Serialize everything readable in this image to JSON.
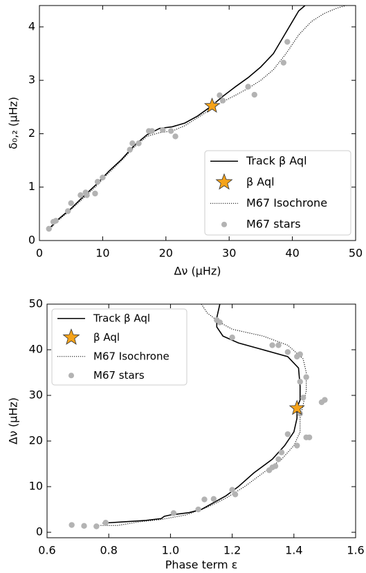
{
  "chart_data": [
    {
      "type": "line",
      "xlabel": "Δν (μHz)",
      "ylabel": "δ₀,₂ (μHz)",
      "xlim": [
        0,
        50
      ],
      "ylim": [
        0,
        4.4
      ],
      "xticks": [
        0,
        10,
        20,
        30,
        40,
        50
      ],
      "yticks": [
        0,
        1,
        2,
        3,
        4
      ],
      "legend": "lower right",
      "series": [
        {
          "name": "Track β Aql",
          "color": "#000000",
          "linestyle": "solid",
          "x": [
            1.5,
            3,
            5,
            7,
            9,
            11,
            13,
            15,
            17,
            19,
            21,
            23,
            25,
            27,
            29,
            31,
            33,
            35,
            37,
            38.5,
            40,
            41,
            42
          ],
          "values": [
            0.22,
            0.4,
            0.6,
            0.83,
            1.05,
            1.3,
            1.52,
            1.78,
            1.98,
            2.1,
            2.13,
            2.2,
            2.33,
            2.5,
            2.7,
            2.88,
            3.05,
            3.25,
            3.5,
            3.8,
            4.1,
            4.3,
            4.4
          ]
        },
        {
          "name": "β Aql",
          "color": "#f5a31a",
          "marker": "star",
          "x": [
            27.3
          ],
          "values": [
            2.52
          ]
        },
        {
          "name": "M67 Isochrone",
          "color": "#000000",
          "linestyle": "dotted",
          "x": [
            1.5,
            3,
            5,
            7,
            9,
            11,
            13,
            15,
            17,
            19,
            21,
            23,
            25,
            27,
            29,
            31,
            33,
            35,
            37,
            39,
            41,
            43,
            45,
            47,
            48.5
          ],
          "values": [
            0.2,
            0.38,
            0.58,
            0.8,
            1.02,
            1.27,
            1.5,
            1.75,
            1.95,
            2.02,
            2.05,
            2.15,
            2.3,
            2.45,
            2.6,
            2.72,
            2.85,
            3.0,
            3.2,
            3.5,
            3.85,
            4.1,
            4.25,
            4.35,
            4.4
          ]
        },
        {
          "name": "M67 stars",
          "color": "#b3b3b3",
          "marker": "circle",
          "x": [
            1.5,
            2.2,
            2.6,
            4.5,
            5,
            6.5,
            7.3,
            7.5,
            8.8,
            9.2,
            10,
            14.3,
            14.7,
            15.7,
            17.3,
            17.8,
            19.5,
            21.5,
            20.8,
            27.5,
            28.5,
            29,
            33,
            34,
            38.6,
            39.2
          ],
          "values": [
            0.22,
            0.35,
            0.37,
            0.55,
            0.7,
            0.85,
            0.9,
            0.85,
            0.88,
            1.1,
            1.18,
            1.7,
            1.82,
            1.82,
            2.05,
            2.05,
            2.07,
            1.95,
            2.05,
            2.55,
            2.72,
            2.62,
            2.88,
            2.73,
            3.33,
            3.72
          ]
        }
      ]
    },
    {
      "type": "line",
      "xlabel": "Phase term ε",
      "ylabel": "Δν (μHz)",
      "xlim": [
        0.6,
        1.6
      ],
      "ylim": [
        -1.2,
        50
      ],
      "xticks": [
        0.6,
        0.8,
        {
          "value": 1.0,
          "label": "1.0"
        },
        1.2,
        1.4,
        1.6
      ],
      "yticks": [
        0,
        10,
        20,
        30,
        40,
        50
      ],
      "legend": "upper left",
      "series": [
        {
          "name": "Track β Aql",
          "color": "#000000",
          "linestyle": "solid",
          "x": [
            0.78,
            0.85,
            0.92,
            0.97,
            0.98,
            1.0,
            1.06,
            1.1,
            1.14,
            1.18,
            1.22,
            1.27,
            1.33,
            1.37,
            1.4,
            1.41,
            1.41,
            1.42,
            1.42,
            1.415,
            1.38,
            1.3,
            1.22,
            1.17,
            1.15,
            1.15,
            1.16
          ],
          "values": [
            2,
            2.3,
            2.6,
            3,
            3.5,
            3.8,
            4.3,
            5,
            6.5,
            8,
            10,
            13,
            16,
            19,
            22,
            25,
            27.2,
            29,
            32,
            36,
            38.5,
            40,
            41.5,
            43,
            45,
            47,
            50
          ]
        },
        {
          "name": "β Aql",
          "color": "#f5a31a",
          "marker": "star",
          "x": [
            1.41
          ],
          "values": [
            27.2
          ]
        },
        {
          "name": "M67 Isochrone",
          "color": "#000000",
          "linestyle": "dotted",
          "x": [
            0.76,
            0.83,
            0.9,
            0.97,
            1.05,
            1.12,
            1.18,
            1.24,
            1.3,
            1.36,
            1.4,
            1.42,
            1.42,
            1.43,
            1.44,
            1.44,
            1.43,
            1.38,
            1.3,
            1.2,
            1.16,
            1.12,
            1.1
          ],
          "values": [
            1.5,
            1.5,
            2.3,
            2.8,
            3.8,
            5.5,
            7.5,
            10,
            13,
            16,
            19,
            22,
            25,
            28,
            31,
            35,
            38,
            41,
            43,
            44.5,
            46,
            48,
            50
          ]
        },
        {
          "name": "M67 stars",
          "color": "#b3b3b3",
          "marker": "circle",
          "x": [
            0.68,
            0.72,
            0.76,
            0.79,
            1.01,
            1.09,
            1.11,
            1.14,
            1.2,
            1.21,
            1.32,
            1.33,
            1.34,
            1.35,
            1.36,
            1.38,
            1.41,
            1.44,
            1.45,
            1.42,
            1.43,
            1.44,
            1.42,
            1.41,
            1.42,
            1.38,
            1.35,
            1.33,
            1.2,
            1.15,
            1.16,
            1.49,
            1.5
          ],
          "values": [
            1.6,
            1.4,
            1.3,
            2.1,
            4.2,
            5.0,
            7.2,
            7.3,
            9.3,
            8.3,
            13.6,
            14.2,
            14.5,
            16,
            17.5,
            21.5,
            19,
            20.8,
            20.8,
            26,
            29.5,
            34,
            33,
            38.5,
            39,
            39.5,
            41,
            41,
            42.7,
            46.5,
            46,
            28.5,
            29
          ]
        }
      ]
    }
  ]
}
